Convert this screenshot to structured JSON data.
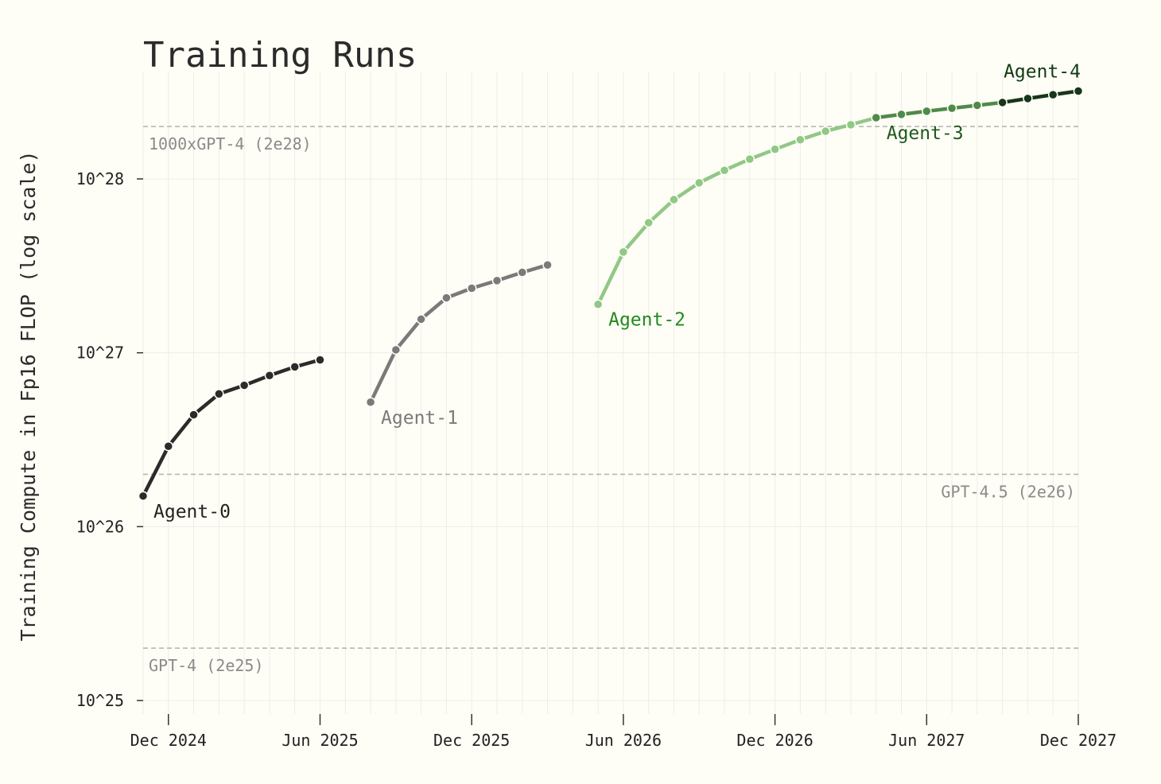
{
  "chart_data": {
    "type": "line",
    "title": "Training Runs",
    "xlabel": "",
    "ylabel": "Training Compute in Fp16 FLOP (log scale)",
    "y_scale": "log",
    "ylim": [
      8.5e+24,
      3.5e+28
    ],
    "xlim": [
      "2024-11",
      "2027-12"
    ],
    "y_ticks": [
      {
        "value": 1e+25,
        "label": "10^25"
      },
      {
        "value": 1e+26,
        "label": "10^26"
      },
      {
        "value": 1e+27,
        "label": "10^27"
      },
      {
        "value": 1e+28,
        "label": "10^28"
      }
    ],
    "x_ticks": [
      {
        "value": "2024-12",
        "label": "Dec 2024"
      },
      {
        "value": "2025-06",
        "label": "Jun 2025"
      },
      {
        "value": "2025-12",
        "label": "Dec 2025"
      },
      {
        "value": "2026-06",
        "label": "Jun 2026"
      },
      {
        "value": "2026-12",
        "label": "Dec 2026"
      },
      {
        "value": "2027-06",
        "label": "Jun 2027"
      },
      {
        "value": "2027-12",
        "label": "Dec 2027"
      }
    ],
    "grid": true,
    "reference_lines": [
      {
        "value": 2e+28,
        "label": "1000xGPT-4 (2e28)",
        "label_side": "left"
      },
      {
        "value": 2e+26,
        "label": "GPT-4.5 (2e26)",
        "label_side": "right"
      },
      {
        "value": 2e+25,
        "label": "GPT-4 (2e25)",
        "label_side": "left"
      }
    ],
    "series": [
      {
        "name": "Agent-0",
        "color": "#2b2b2b",
        "label_position": "start",
        "points": [
          {
            "x": "2024-11",
            "y": 1.5e+26
          },
          {
            "x": "2024-12",
            "y": 2.9e+26
          },
          {
            "x": "2025-01",
            "y": 4.4e+26
          },
          {
            "x": "2025-02",
            "y": 5.8e+26
          },
          {
            "x": "2025-03",
            "y": 6.5e+26
          },
          {
            "x": "2025-04",
            "y": 7.4e+26
          },
          {
            "x": "2025-05",
            "y": 8.3e+26
          },
          {
            "x": "2025-06",
            "y": 9.1e+26
          }
        ]
      },
      {
        "name": "Agent-1",
        "color": "#7a7a7a",
        "label_position": "start",
        "points": [
          {
            "x": "2025-08",
            "y": 5.2e+26
          },
          {
            "x": "2025-09",
            "y": 1.04e+27
          },
          {
            "x": "2025-10",
            "y": 1.56e+27
          },
          {
            "x": "2025-11",
            "y": 2.07e+27
          },
          {
            "x": "2025-12",
            "y": 2.35e+27
          },
          {
            "x": "2026-01",
            "y": 2.6e+27
          },
          {
            "x": "2026-02",
            "y": 2.9e+27
          },
          {
            "x": "2026-03",
            "y": 3.2e+27
          }
        ]
      },
      {
        "name": "Agent-2",
        "color": "#90c886",
        "label_position": "start",
        "points": [
          {
            "x": "2026-05",
            "y": 1.9e+27
          },
          {
            "x": "2026-06",
            "y": 3.8e+27
          },
          {
            "x": "2026-07",
            "y": 5.6e+27
          },
          {
            "x": "2026-08",
            "y": 7.6e+27
          },
          {
            "x": "2026-09",
            "y": 9.5e+27
          },
          {
            "x": "2026-10",
            "y": 1.12e+28
          },
          {
            "x": "2026-11",
            "y": 1.3e+28
          },
          {
            "x": "2026-12",
            "y": 1.48e+28
          },
          {
            "x": "2027-01",
            "y": 1.68e+28
          },
          {
            "x": "2027-02",
            "y": 1.88e+28
          },
          {
            "x": "2027-03",
            "y": 2.05e+28
          }
        ]
      },
      {
        "name": "Agent-3",
        "color": "#4f8a4a",
        "label_position": "start",
        "points": [
          {
            "x": "2027-04",
            "y": 2.25e+28
          },
          {
            "x": "2027-05",
            "y": 2.35e+28
          },
          {
            "x": "2027-06",
            "y": 2.45e+28
          },
          {
            "x": "2027-07",
            "y": 2.55e+28
          },
          {
            "x": "2027-08",
            "y": 2.65e+28
          }
        ]
      },
      {
        "name": "Agent-4",
        "color": "#17361a",
        "label_position": "end",
        "points": [
          {
            "x": "2027-09",
            "y": 2.75e+28
          },
          {
            "x": "2027-10",
            "y": 2.9e+28
          },
          {
            "x": "2027-11",
            "y": 3.05e+28
          },
          {
            "x": "2027-12",
            "y": 3.2e+28
          }
        ]
      }
    ]
  },
  "styles": {
    "background": "#fffef6",
    "grid_color": "#ececec",
    "reference_line_color": "#b0b0b0",
    "reference_label_color": "#8a8a8a",
    "label_colors": {
      "Agent-0": "#222222",
      "Agent-1": "#7a7a7a",
      "Agent-2": "#1f8a1f",
      "Agent-3": "#1e5a1e",
      "Agent-4": "#0f3a12"
    }
  }
}
